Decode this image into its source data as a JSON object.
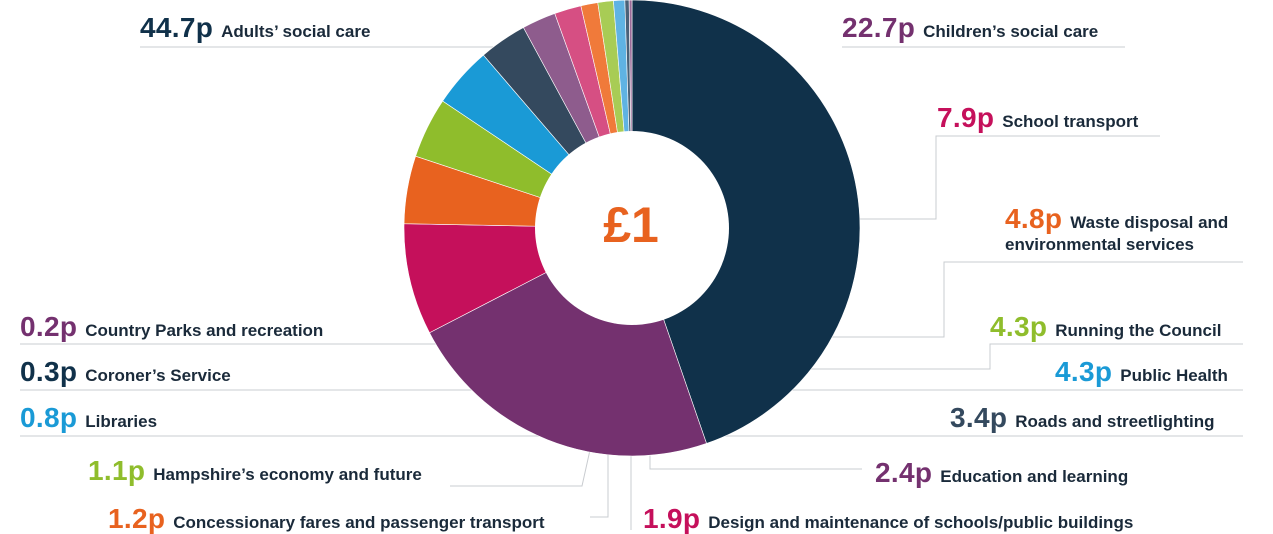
{
  "center_label": "£1",
  "colors": {
    "navy": "#10314a",
    "purple": "#74316f",
    "magenta": "#c5105b",
    "orange": "#e8621f",
    "lime": "#8fbd2c",
    "cyan": "#1a9ad6",
    "slate": "#34495e",
    "mauve": "#8e5c8d",
    "pink": "#d64f83"
  },
  "chart_data": {
    "type": "pie",
    "center": "£1",
    "unit": "p",
    "slices": [
      {
        "value": 44.7,
        "value_label": "44.7p",
        "name": "Adults’ social care",
        "color": "#10314a",
        "value_color": "#10314a"
      },
      {
        "value": 22.7,
        "value_label": "22.7p",
        "name": "Children’s social care",
        "color": "#74316f",
        "value_color": "#74316f"
      },
      {
        "value": 7.9,
        "value_label": "7.9p",
        "name": "School transport",
        "color": "#c5105b",
        "value_color": "#c5105b"
      },
      {
        "value": 4.8,
        "value_label": "4.8p",
        "name": "Waste disposal and environmental services",
        "color": "#e8621f",
        "value_color": "#e8621f"
      },
      {
        "value": 4.3,
        "value_label": "4.3p",
        "name": "Running the Council",
        "color": "#8fbd2c",
        "value_color": "#8fbd2c"
      },
      {
        "value": 4.3,
        "value_label": "4.3p",
        "name": "Public Health",
        "color": "#1a9ad6",
        "value_color": "#1a9ad6"
      },
      {
        "value": 3.4,
        "value_label": "3.4p",
        "name": "Roads and streetlighting",
        "color": "#34495e",
        "value_color": "#34495e"
      },
      {
        "value": 2.4,
        "value_label": "2.4p",
        "name": "Education and learning",
        "color": "#8e5c8d",
        "value_color": "#74316f"
      },
      {
        "value": 1.9,
        "value_label": "1.9p",
        "name": "Design and maintenance of schools/public buildings",
        "color": "#d64f83",
        "value_color": "#c5105b"
      },
      {
        "value": 1.2,
        "value_label": "1.2p",
        "name": "Concessionary fares and passenger transport",
        "color": "#f07a3a",
        "value_color": "#e8621f"
      },
      {
        "value": 1.1,
        "value_label": "1.1p",
        "name": "Hampshire’s economy and future",
        "color": "#a8cc55",
        "value_color": "#8fbd2c"
      },
      {
        "value": 0.8,
        "value_label": "0.8p",
        "name": "Libraries",
        "color": "#5fb3e3",
        "value_color": "#1a9ad6"
      },
      {
        "value": 0.3,
        "value_label": "0.3p",
        "name": "Coroner’s Service",
        "color": "#4a6178",
        "value_color": "#10314a"
      },
      {
        "value": 0.2,
        "value_label": "0.2p",
        "name": "Country Parks and recreation",
        "color": "#9a6a98",
        "value_color": "#74316f"
      }
    ]
  }
}
